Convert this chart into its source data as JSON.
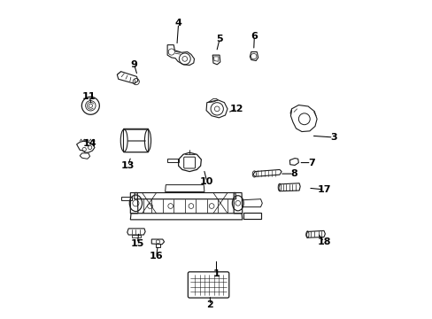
{
  "background_color": "#ffffff",
  "line_color": "#1a1a1a",
  "text_color": "#000000",
  "figsize": [
    4.89,
    3.6
  ],
  "dpi": 100,
  "label_positions": {
    "1": [
      0.5,
      0.14,
      0.5,
      0.185
    ],
    "2": [
      0.48,
      0.04,
      0.48,
      0.072
    ],
    "3": [
      0.87,
      0.57,
      0.8,
      0.575
    ],
    "4": [
      0.38,
      0.93,
      0.375,
      0.86
    ],
    "5": [
      0.51,
      0.88,
      0.5,
      0.84
    ],
    "6": [
      0.62,
      0.89,
      0.618,
      0.845
    ],
    "7": [
      0.8,
      0.49,
      0.76,
      0.49
    ],
    "8": [
      0.745,
      0.455,
      0.7,
      0.455
    ],
    "9": [
      0.24,
      0.8,
      0.25,
      0.765
    ],
    "10": [
      0.47,
      0.43,
      0.46,
      0.47
    ],
    "11": [
      0.098,
      0.7,
      0.105,
      0.672
    ],
    "12": [
      0.565,
      0.66,
      0.535,
      0.648
    ],
    "13": [
      0.22,
      0.48,
      0.23,
      0.51
    ],
    "14": [
      0.1,
      0.55,
      0.125,
      0.548
    ],
    "15": [
      0.25,
      0.235,
      0.255,
      0.272
    ],
    "16": [
      0.31,
      0.195,
      0.315,
      0.23
    ],
    "17": [
      0.84,
      0.405,
      0.79,
      0.41
    ],
    "18": [
      0.84,
      0.24,
      0.82,
      0.268
    ]
  }
}
